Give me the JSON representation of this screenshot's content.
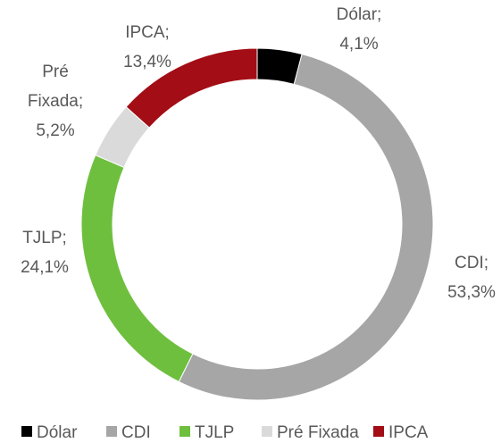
{
  "chart_data": {
    "type": "donut",
    "categories": [
      "Dólar",
      "CDI",
      "TJLP",
      "Pré Fixada",
      "IPCA"
    ],
    "values": [
      4.1,
      53.3,
      24.1,
      5.2,
      13.4
    ],
    "value_labels": [
      "Dólar; 4,1%",
      "CDI; 53,3%",
      "TJLP; 24,1%",
      "Pré Fixada; 5,2%",
      "IPCA; 13,4%"
    ],
    "colors": [
      "#000000",
      "#a6a6a6",
      "#6fbf3f",
      "#dadada",
      "#a30d15"
    ],
    "legend": "bottom"
  }
}
